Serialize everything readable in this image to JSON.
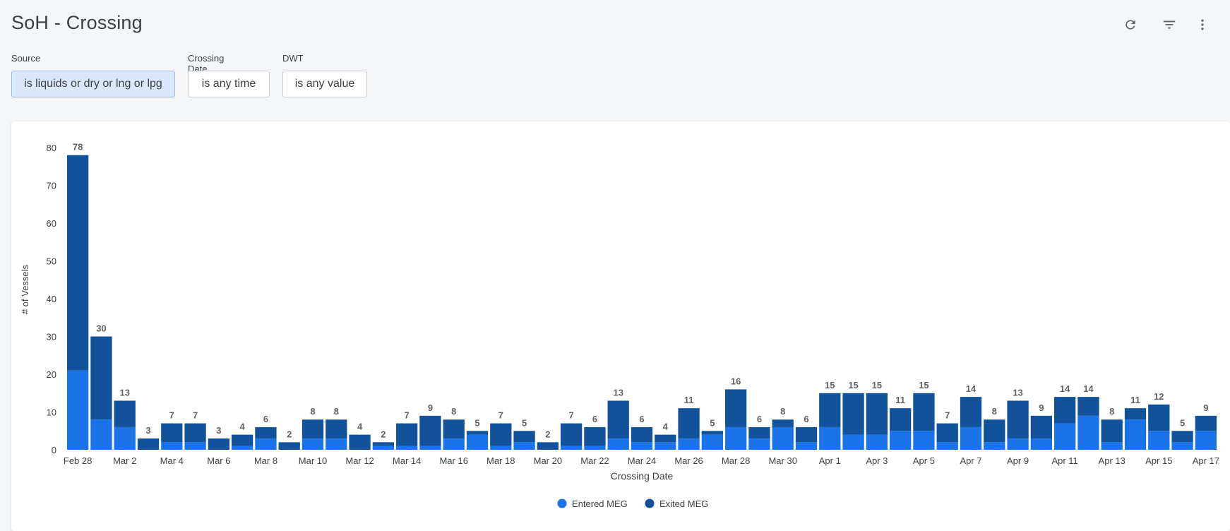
{
  "page": {
    "title": "SoH - Crossing"
  },
  "toolbar": {
    "refresh_icon": "refresh-icon",
    "filter_icon": "filter-list-icon",
    "more_icon": "more-vert-icon"
  },
  "filters": [
    {
      "label": "Source",
      "value": "is liquids or dry or lng or lpg",
      "active": true
    },
    {
      "label": "Crossing Date",
      "value": "is any time",
      "active": false
    },
    {
      "label": "DWT",
      "value": "is any value",
      "active": false
    }
  ],
  "chart_data": {
    "type": "bar",
    "stacked": true,
    "xlabel": "Crossing Date",
    "ylabel": "# of Vessels",
    "ylim": [
      0,
      80
    ],
    "yticks": [
      0,
      10,
      20,
      30,
      40,
      50,
      60,
      70,
      80
    ],
    "grid": false,
    "legend_position": "bottom",
    "categories": [
      "Feb 28",
      "Feb 29",
      "Mar 2",
      "Mar 3",
      "Mar 4",
      "Mar 5",
      "Mar 6",
      "Mar 7",
      "Mar 8",
      "Mar 9",
      "Mar 10",
      "Mar 11",
      "Mar 12",
      "Mar 13",
      "Mar 14",
      "Mar 15",
      "Mar 16",
      "Mar 17",
      "Mar 18",
      "Mar 19",
      "Mar 20",
      "Mar 21",
      "Mar 22",
      "Mar 23",
      "Mar 24",
      "Mar 25",
      "Mar 26",
      "Mar 27",
      "Mar 28",
      "Mar 29",
      "Mar 30",
      "Mar 31",
      "Apr 1",
      "Apr 2",
      "Apr 3",
      "Apr 4",
      "Apr 5",
      "Apr 6",
      "Apr 7",
      "Apr 8",
      "Apr 9",
      "Apr 10",
      "Apr 11",
      "Apr 12",
      "Apr 13",
      "Apr 14",
      "Apr 15",
      "Apr 16",
      "Apr 17"
    ],
    "x_tick_labels": [
      "Feb 28",
      "Mar 2",
      "Mar 4",
      "Mar 6",
      "Mar 8",
      "Mar 10",
      "Mar 12",
      "Mar 14",
      "Mar 16",
      "Mar 18",
      "Mar 20",
      "Mar 22",
      "Mar 24",
      "Mar 26",
      "Mar 28",
      "Mar 30",
      "Apr 1",
      "Apr 3",
      "Apr 5",
      "Apr 7",
      "Apr 9",
      "Apr 11",
      "Apr 13",
      "Apr 15",
      "Apr 17"
    ],
    "series": [
      {
        "name": "Entered MEG",
        "color": "#1a73e8",
        "values": [
          21,
          8,
          6,
          0,
          2,
          2,
          0,
          1,
          3,
          0,
          3,
          3,
          0,
          1,
          1,
          1,
          3,
          4,
          1,
          2,
          0,
          1,
          1,
          3,
          2,
          2,
          3,
          4,
          6,
          3,
          6,
          2,
          6,
          4,
          4,
          5,
          5,
          2,
          6,
          2,
          3,
          3,
          7,
          9,
          2,
          8,
          5,
          2,
          5
        ]
      },
      {
        "name": "Exited MEG",
        "color": "#11529a",
        "values": [
          57,
          22,
          7,
          3,
          5,
          5,
          3,
          3,
          3,
          2,
          5,
          5,
          4,
          1,
          6,
          8,
          5,
          1,
          6,
          3,
          2,
          6,
          5,
          10,
          4,
          2,
          8,
          1,
          10,
          3,
          2,
          4,
          9,
          11,
          11,
          6,
          10,
          5,
          8,
          6,
          10,
          6,
          7,
          5,
          6,
          3,
          7,
          3,
          4
        ]
      }
    ],
    "totals": [
      78,
      30,
      13,
      3,
      7,
      7,
      3,
      4,
      6,
      2,
      8,
      8,
      4,
      2,
      7,
      9,
      8,
      5,
      7,
      5,
      2,
      7,
      6,
      13,
      6,
      4,
      11,
      5,
      16,
      6,
      8,
      6,
      15,
      15,
      15,
      11,
      15,
      7,
      14,
      8,
      13,
      9,
      14,
      14,
      8,
      11,
      12,
      5,
      9
    ]
  }
}
